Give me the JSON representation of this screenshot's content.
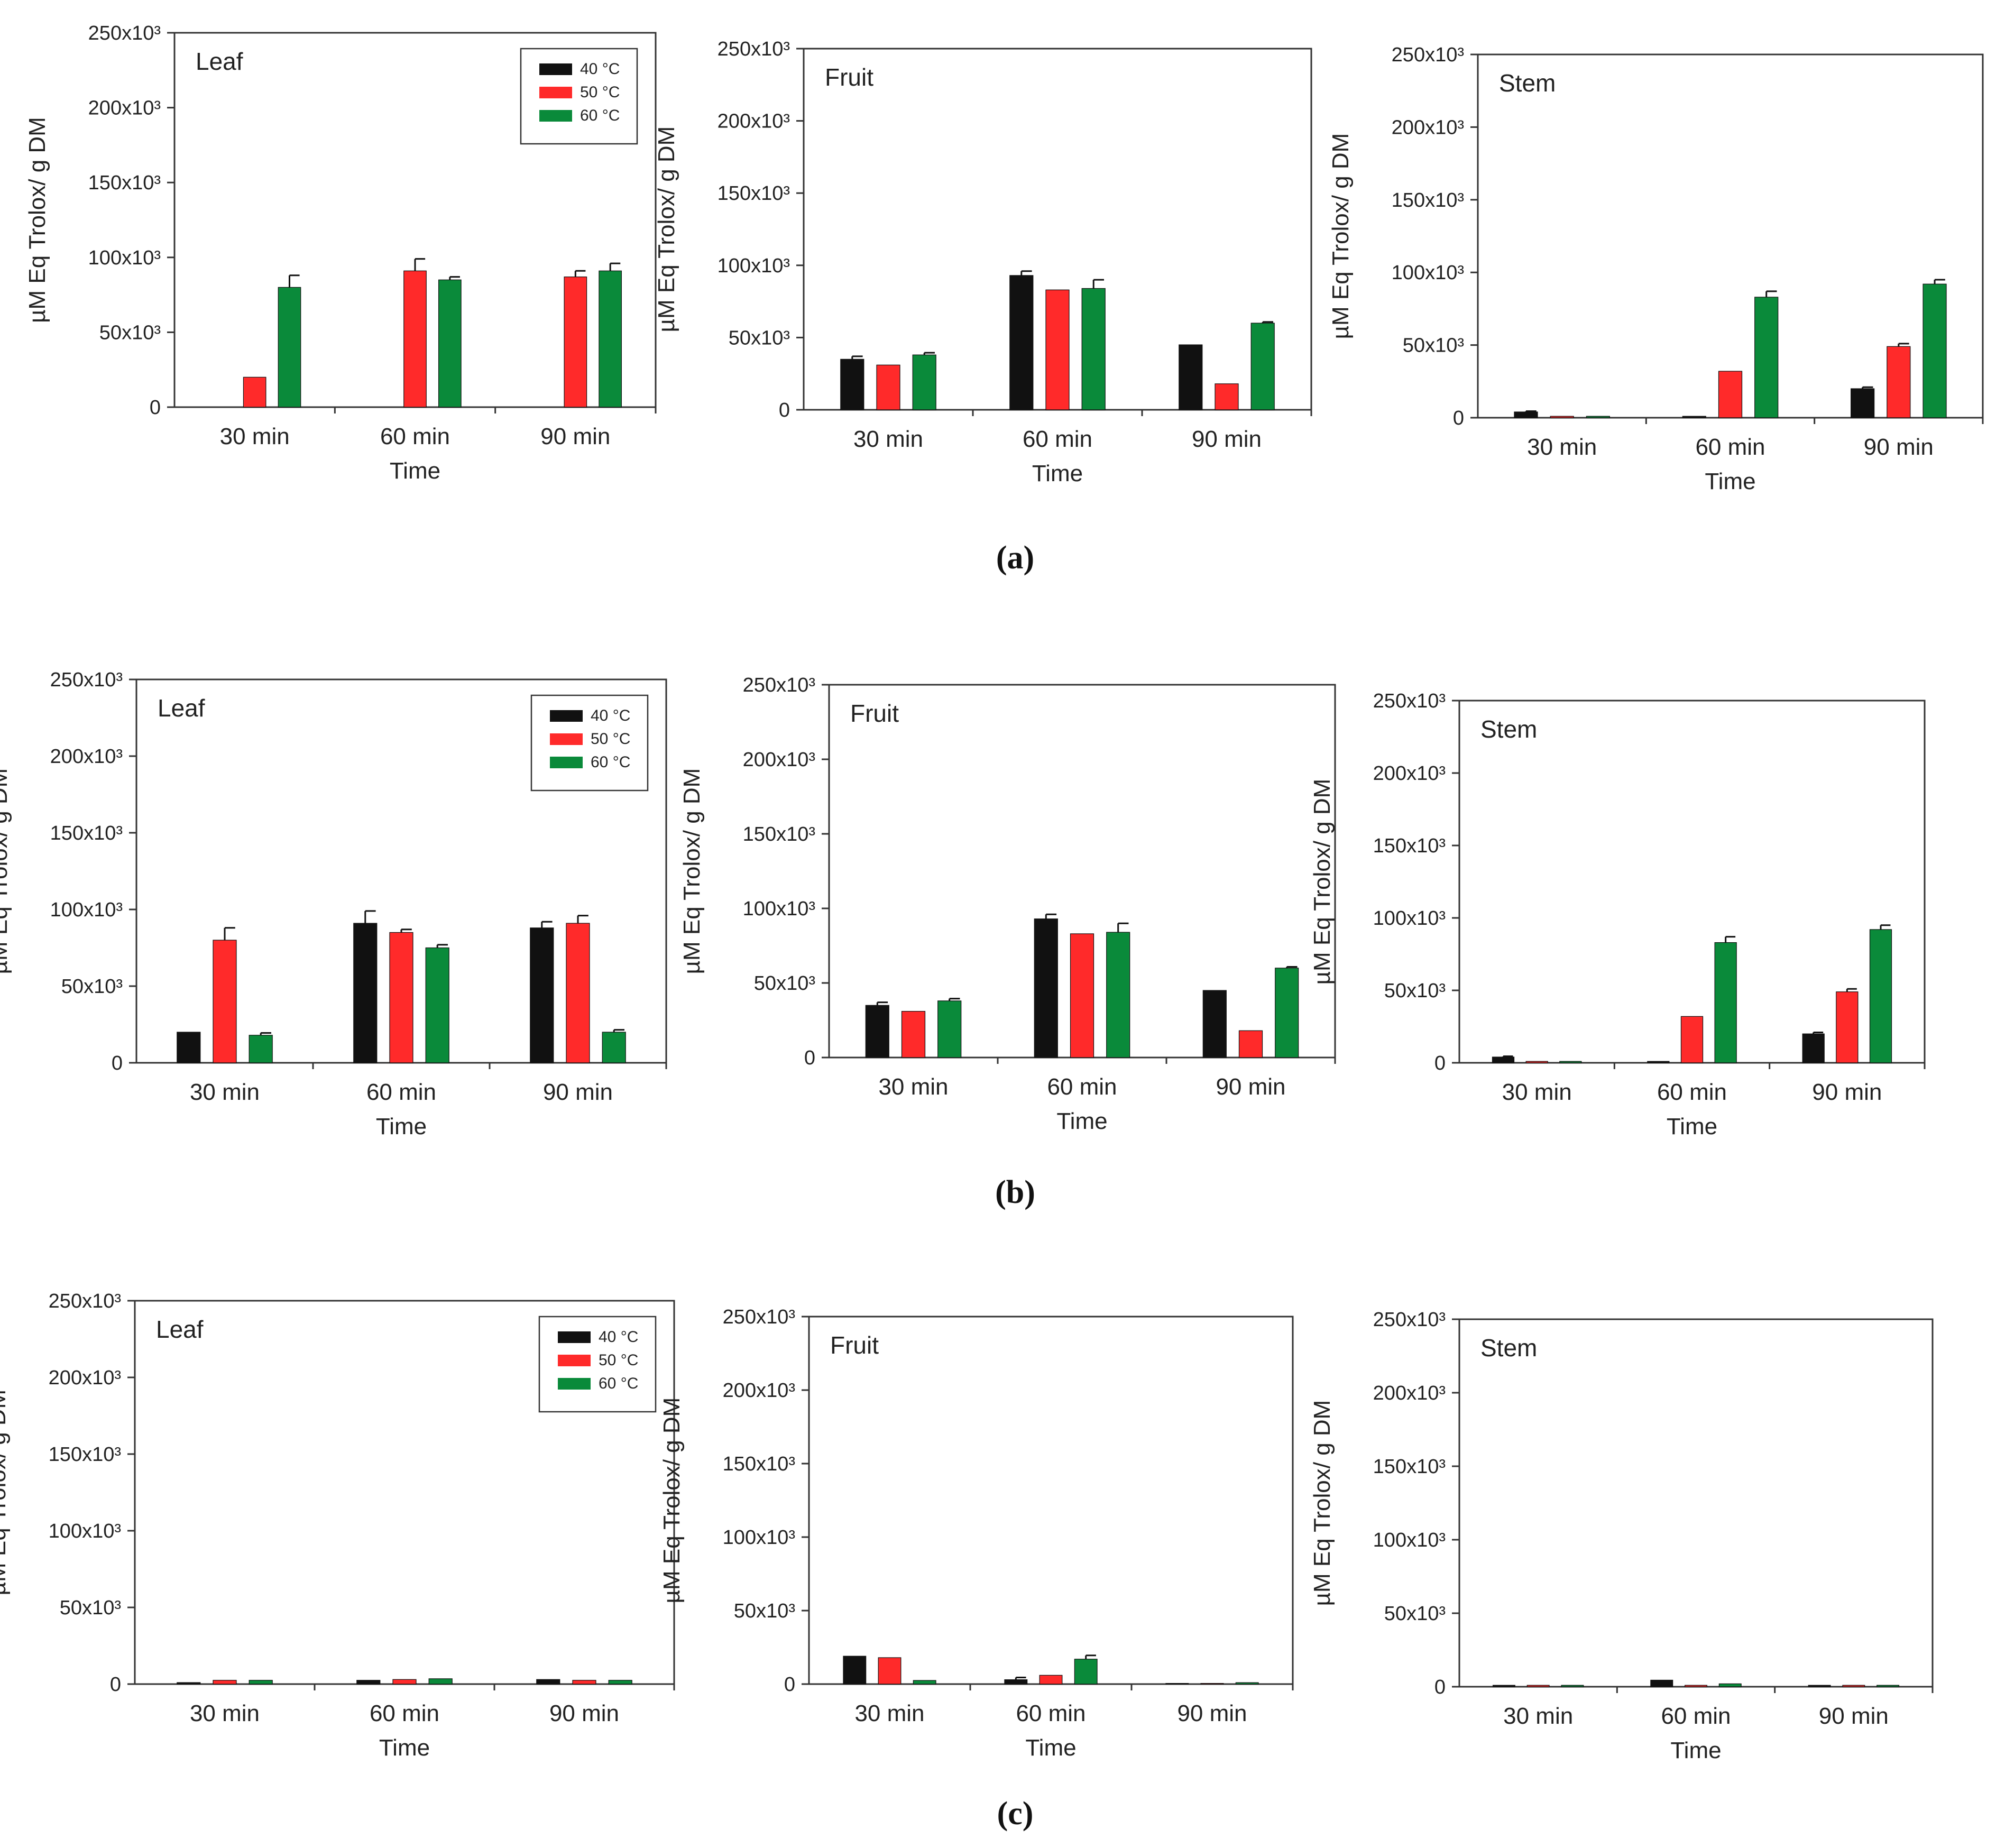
{
  "figure": {
    "row_labels": [
      "(a)",
      "(b)",
      "(c)"
    ],
    "legend": [
      {
        "label": "40 °C",
        "color": "#111111"
      },
      {
        "label": "50 °C",
        "color": "#ff2a2a"
      },
      {
        "label": "60 °C",
        "color": "#0a8a3a"
      }
    ],
    "colors": {
      "s40": "#111111",
      "s50": "#ff2a2a",
      "s60": "#0a8a3a",
      "axis": "#333333"
    }
  },
  "chart_data": [
    {
      "type": "bar",
      "row": "(a)",
      "panel": "Leaf",
      "title": "Leaf",
      "xlabel": "Time",
      "ylabel": "µM Eq Trolox/ g DM",
      "categories": [
        "30 min",
        "60 min",
        "90 min"
      ],
      "ylim": [
        0,
        250000
      ],
      "yticks": [
        "0",
        "50x10³",
        "100x10³",
        "150x10³",
        "200x10³",
        "250x10³"
      ],
      "series": [
        {
          "name": "40 °C",
          "values": [
            0,
            0,
            0
          ],
          "errors": [
            0,
            0,
            0
          ]
        },
        {
          "name": "50 °C",
          "values": [
            20000,
            91000,
            87000
          ],
          "errors": [
            0,
            8000,
            4000
          ]
        },
        {
          "name": "60 °C",
          "values": [
            80000,
            85000,
            91000
          ],
          "errors": [
            8000,
            2000,
            5000
          ]
        }
      ]
    },
    {
      "type": "bar",
      "row": "(a)",
      "panel": "Fruit",
      "title": "Fruit",
      "xlabel": "Time",
      "ylabel": "µM Eq Trolox/ g DM",
      "categories": [
        "30 min",
        "60 min",
        "90 min"
      ],
      "ylim": [
        0,
        250000
      ],
      "yticks": [
        "0",
        "50x10³",
        "100x10³",
        "150x10³",
        "200x10³",
        "250x10³"
      ],
      "series": [
        {
          "name": "40 °C",
          "values": [
            35000,
            93000,
            45000
          ],
          "errors": [
            2000,
            3000,
            0
          ]
        },
        {
          "name": "50 °C",
          "values": [
            31000,
            83000,
            18000
          ],
          "errors": [
            0,
            0,
            0
          ]
        },
        {
          "name": "60 °C",
          "values": [
            38000,
            84000,
            60000
          ],
          "errors": [
            1500,
            6000,
            800
          ]
        }
      ]
    },
    {
      "type": "bar",
      "row": "(a)",
      "panel": "Stem",
      "title": "Stem",
      "xlabel": "Time",
      "ylabel": "µM Eq Trolox/ g DM",
      "categories": [
        "30 min",
        "60 min",
        "90 min"
      ],
      "ylim": [
        0,
        250000
      ],
      "yticks": [
        "0",
        "50x10³",
        "100x10³",
        "150x10³",
        "200x10³",
        "250x10³"
      ],
      "series": [
        {
          "name": "40 °C",
          "values": [
            4000,
            1000,
            20000
          ],
          "errors": [
            500,
            0,
            1000
          ]
        },
        {
          "name": "50 °C",
          "values": [
            1000,
            32000,
            49000
          ],
          "errors": [
            0,
            0,
            2000
          ]
        },
        {
          "name": "60 °C",
          "values": [
            1000,
            83000,
            92000
          ],
          "errors": [
            0,
            4000,
            3000
          ]
        }
      ]
    },
    {
      "type": "bar",
      "row": "(b)",
      "panel": "Leaf",
      "title": "Leaf",
      "xlabel": "Time",
      "ylabel": "µM Eq Trolox/ g DM",
      "categories": [
        "30 min",
        "60 min",
        "90 min"
      ],
      "ylim": [
        0,
        250000
      ],
      "yticks": [
        "0",
        "50x10³",
        "100x10³",
        "150x10³",
        "200x10³",
        "250x10³"
      ],
      "series": [
        {
          "name": "40 °C",
          "values": [
            20000,
            91000,
            88000
          ],
          "errors": [
            0,
            8000,
            4000
          ]
        },
        {
          "name": "50 °C",
          "values": [
            80000,
            85000,
            91000
          ],
          "errors": [
            8000,
            2000,
            5000
          ]
        },
        {
          "name": "60 °C",
          "values": [
            18000,
            75000,
            20000
          ],
          "errors": [
            1500,
            2000,
            1500
          ]
        }
      ]
    },
    {
      "type": "bar",
      "row": "(b)",
      "panel": "Fruit",
      "title": "Fruit",
      "xlabel": "Time",
      "ylabel": "µM Eq Trolox/ g DM",
      "categories": [
        "30 min",
        "60 min",
        "90 min"
      ],
      "ylim": [
        0,
        250000
      ],
      "yticks": [
        "0",
        "50x10³",
        "100x10³",
        "150x10³",
        "200x10³",
        "250x10³"
      ],
      "series": [
        {
          "name": "40 °C",
          "values": [
            35000,
            93000,
            45000
          ],
          "errors": [
            2000,
            3000,
            0
          ]
        },
        {
          "name": "50 °C",
          "values": [
            31000,
            83000,
            18000
          ],
          "errors": [
            0,
            0,
            0
          ]
        },
        {
          "name": "60 °C",
          "values": [
            38000,
            84000,
            60000
          ],
          "errors": [
            1500,
            6000,
            800
          ]
        }
      ]
    },
    {
      "type": "bar",
      "row": "(b)",
      "panel": "Stem",
      "title": "Stem",
      "xlabel": "Time",
      "ylabel": "µM Eq Trolox/ g DM",
      "categories": [
        "30 min",
        "60 min",
        "90 min"
      ],
      "ylim": [
        0,
        250000
      ],
      "yticks": [
        "0",
        "50x10³",
        "100x10³",
        "150x10³",
        "200x10³",
        "250x10³"
      ],
      "series": [
        {
          "name": "40 °C",
          "values": [
            4000,
            1000,
            20000
          ],
          "errors": [
            500,
            0,
            1000
          ]
        },
        {
          "name": "50 °C",
          "values": [
            1000,
            32000,
            49000
          ],
          "errors": [
            0,
            0,
            2000
          ]
        },
        {
          "name": "60 °C",
          "values": [
            1000,
            83000,
            92000
          ],
          "errors": [
            0,
            4000,
            3000
          ]
        }
      ]
    },
    {
      "type": "bar",
      "row": "(c)",
      "panel": "Leaf",
      "title": "Leaf",
      "xlabel": "Time",
      "ylabel": "µM Eq Trolox/ g DM",
      "categories": [
        "30 min",
        "60 min",
        "90 min"
      ],
      "ylim": [
        0,
        250000
      ],
      "yticks": [
        "0",
        "50x10³",
        "100x10³",
        "150x10³",
        "200x10³",
        "250x10³"
      ],
      "series": [
        {
          "name": "40 °C",
          "values": [
            1000,
            2500,
            3000
          ],
          "errors": [
            0,
            0,
            0
          ]
        },
        {
          "name": "50 °C",
          "values": [
            2500,
            3000,
            2500
          ],
          "errors": [
            0,
            0,
            0
          ]
        },
        {
          "name": "60 °C",
          "values": [
            2500,
            3500,
            2500
          ],
          "errors": [
            0,
            0,
            0
          ]
        }
      ]
    },
    {
      "type": "bar",
      "row": "(c)",
      "panel": "Fruit",
      "title": "Fruit",
      "xlabel": "Time",
      "ylabel": "µM Eq Trolox/ g DM",
      "categories": [
        "30 min",
        "60 min",
        "90 min"
      ],
      "ylim": [
        0,
        250000
      ],
      "yticks": [
        "0",
        "50x10³",
        "100x10³",
        "150x10³",
        "200x10³",
        "250x10³"
      ],
      "series": [
        {
          "name": "40 °C",
          "values": [
            19000,
            3000,
            500
          ],
          "errors": [
            0,
            1500,
            0
          ]
        },
        {
          "name": "50 °C",
          "values": [
            18000,
            6000,
            500
          ],
          "errors": [
            0,
            0,
            0
          ]
        },
        {
          "name": "60 °C",
          "values": [
            2500,
            17000,
            1000
          ],
          "errors": [
            0,
            2500,
            0
          ]
        }
      ]
    },
    {
      "type": "bar",
      "row": "(c)",
      "panel": "Stem",
      "title": "Stem",
      "xlabel": "Time",
      "ylabel": "µM Eq Trolox/ g DM",
      "categories": [
        "30 min",
        "60 min",
        "90 min"
      ],
      "ylim": [
        0,
        250000
      ],
      "yticks": [
        "0",
        "50x10³",
        "100x10³",
        "150x10³",
        "200x10³",
        "250x10³"
      ],
      "series": [
        {
          "name": "40 °C",
          "values": [
            1000,
            4500,
            1000
          ],
          "errors": [
            0,
            0,
            0
          ]
        },
        {
          "name": "50 °C",
          "values": [
            1000,
            1000,
            1000
          ],
          "errors": [
            0,
            0,
            0
          ]
        },
        {
          "name": "60 °C",
          "values": [
            1000,
            2000,
            1000
          ],
          "errors": [
            0,
            0,
            0
          ]
        }
      ]
    }
  ]
}
